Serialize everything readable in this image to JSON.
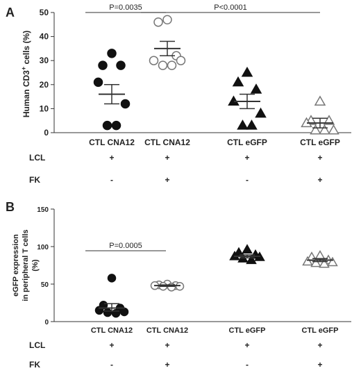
{
  "chart_data": [
    {
      "panel_label": "A",
      "type": "scatter",
      "ylabel_main": "Human CD3",
      "ylabel_sup": "+",
      "ylabel_tail": " cells (%)",
      "ylim": [
        0,
        50
      ],
      "yticks": [
        0,
        10,
        20,
        30,
        40,
        50
      ],
      "categories": [
        "CTL CNA12",
        "CTL CNA12",
        "CTL eGFP",
        "CTL eGFP"
      ],
      "markers": [
        {
          "shape": "circle",
          "fill": "#111111"
        },
        {
          "shape": "circle",
          "fill": "none"
        },
        {
          "shape": "triangle",
          "fill": "#111111"
        },
        {
          "shape": "triangle",
          "fill": "none"
        }
      ],
      "groups": [
        {
          "points": [
            33,
            28,
            28,
            21,
            12,
            3,
            3
          ],
          "mean": 16,
          "sem_low": 12,
          "sem_high": 20
        },
        {
          "points": [
            47,
            46,
            32,
            30,
            30,
            28,
            28
          ],
          "mean": 35,
          "sem_low": 32,
          "sem_high": 38
        },
        {
          "points": [
            25,
            21,
            18,
            13,
            8,
            3,
            3
          ],
          "mean": 13,
          "sem_low": 10,
          "sem_high": 16
        },
        {
          "points": [
            13,
            5,
            5,
            4,
            1,
            1,
            1
          ],
          "mean": 4,
          "sem_low": 2,
          "sem_high": 6
        }
      ],
      "brackets": [
        {
          "from": 0,
          "to": 1,
          "label": "P=0.0035"
        },
        {
          "from": 1,
          "to": 3,
          "label": "P<0.0001"
        }
      ],
      "conditions": [
        {
          "label": "LCL",
          "values": [
            "+",
            "+",
            "+",
            "+"
          ]
        },
        {
          "label": "FK",
          "values": [
            "-",
            "+",
            "-",
            "+"
          ]
        }
      ]
    },
    {
      "panel_label": "B",
      "type": "scatter",
      "ylabel_lines": [
        "eGFP expression",
        "in peripheral T cells",
        "(%)"
      ],
      "ylim": [
        0,
        150
      ],
      "yticks": [
        0,
        50,
        100,
        150
      ],
      "categories": [
        "CTL CNA12",
        "CTL CNA12",
        "CTL eGFP",
        "CTL eGFP"
      ],
      "markers": [
        {
          "shape": "circle",
          "fill": "#111111"
        },
        {
          "shape": "circle",
          "fill": "none"
        },
        {
          "shape": "triangle",
          "fill": "#111111"
        },
        {
          "shape": "triangle",
          "fill": "none"
        }
      ],
      "groups": [
        {
          "points": [
            58,
            22,
            18,
            15,
            13,
            12,
            11
          ],
          "mean": 18,
          "sem_low": 14,
          "sem_high": 24
        },
        {
          "points": [
            50,
            49,
            48,
            48,
            47,
            47,
            46
          ],
          "mean": 48,
          "sem_low": 47,
          "sem_high": 49
        },
        {
          "points": [
            96,
            92,
            89,
            87,
            86,
            84,
            82
          ],
          "mean": 87,
          "sem_low": 85,
          "sem_high": 89
        },
        {
          "points": [
            88,
            86,
            82,
            80,
            79,
            78,
            77
          ],
          "mean": 82,
          "sem_low": 80,
          "sem_high": 84
        }
      ],
      "brackets": [
        {
          "from": 0,
          "to": 1,
          "label": "P=0.0005"
        }
      ],
      "conditions": [
        {
          "label": "LCL",
          "values": [
            "+",
            "+",
            "+",
            "+"
          ]
        },
        {
          "label": "FK",
          "values": [
            "-",
            "+",
            "-",
            "+"
          ]
        }
      ]
    }
  ]
}
